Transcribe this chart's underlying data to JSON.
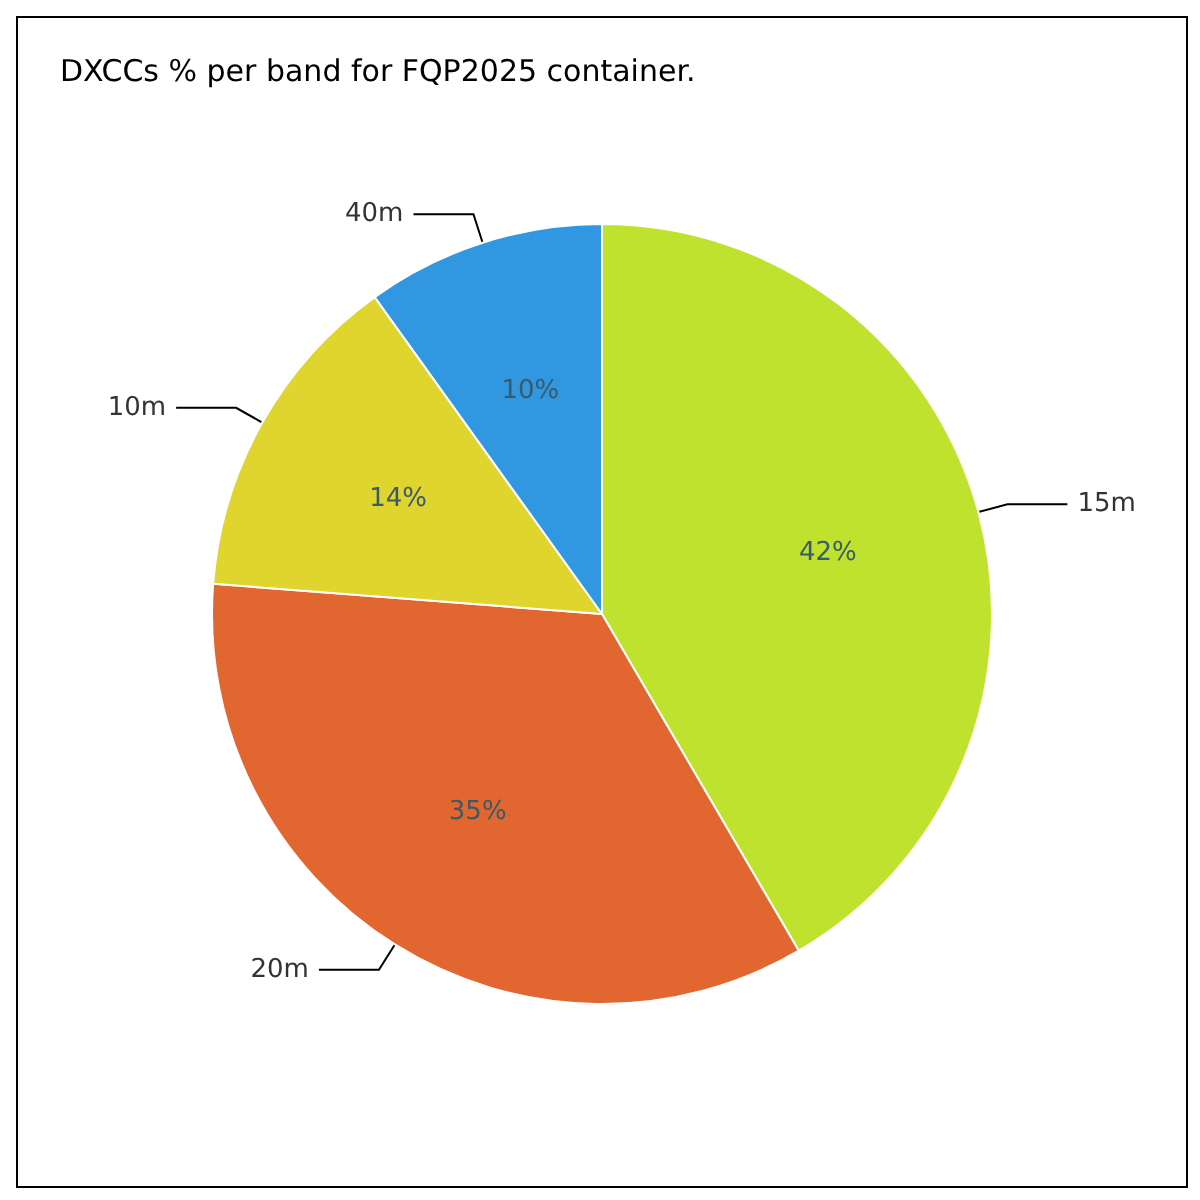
{
  "chart_data": {
    "type": "pie",
    "title": "DXCCs % per band for FQP2025 container.",
    "categories": [
      "15m",
      "20m",
      "10m",
      "40m"
    ],
    "values": [
      42,
      35,
      14,
      10
    ],
    "value_labels": [
      "42%",
      "35%",
      "14%",
      "10%"
    ],
    "colors": [
      "#bfe22e",
      "#e2662f",
      "#e0d52e",
      "#3097e0"
    ],
    "legend": false
  }
}
